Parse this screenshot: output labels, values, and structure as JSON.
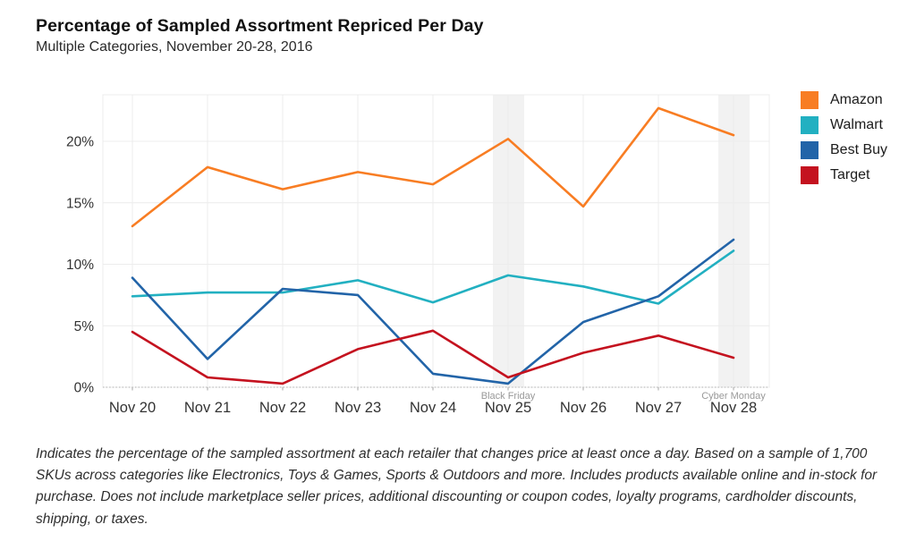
{
  "header": {
    "title": "Percentage of Sampled Assortment Repriced Per Day",
    "subtitle": "Multiple Categories, November 20-28, 2016"
  },
  "chart_data": {
    "type": "line",
    "title": "Percentage of Sampled Assortment Repriced Per Day",
    "subtitle": "Multiple Categories, November 20-28, 2016",
    "categories": [
      "Nov 20",
      "Nov 21",
      "Nov 22",
      "Nov 23",
      "Nov 24",
      "Nov 25",
      "Nov 26",
      "Nov 27",
      "Nov 28"
    ],
    "series": [
      {
        "name": "Amazon",
        "color": "#F87D23",
        "values": [
          13.1,
          17.9,
          16.1,
          17.5,
          16.5,
          20.2,
          14.7,
          22.7,
          20.5
        ]
      },
      {
        "name": "Walmart",
        "color": "#22B0C1",
        "values": [
          7.4,
          7.7,
          7.7,
          8.7,
          6.9,
          9.1,
          8.2,
          6.8,
          11.1
        ]
      },
      {
        "name": "Best Buy",
        "color": "#2264A8",
        "values": [
          8.9,
          2.3,
          8.0,
          7.5,
          1.1,
          0.3,
          5.3,
          7.4,
          12.0
        ]
      },
      {
        "name": "Target",
        "color": "#C4121F",
        "values": [
          4.5,
          0.8,
          0.3,
          3.1,
          4.6,
          0.8,
          2.8,
          4.2,
          2.4
        ]
      }
    ],
    "xlabel": "",
    "ylabel": "",
    "yticks": [
      0,
      5,
      10,
      15,
      20
    ],
    "ytick_labels": [
      "0%",
      "5%",
      "10%",
      "15%",
      "20%"
    ],
    "ylim": [
      0,
      23.8
    ],
    "grid": true,
    "legend_position": "right",
    "annotations": [
      {
        "type": "band",
        "label": "Black Friday",
        "category_index": 5
      },
      {
        "type": "band",
        "label": "Cyber Monday",
        "category_index": 8
      }
    ],
    "band_color": "#f2f2f2",
    "grid_color": "#ececec",
    "axis_color": "#c9c9c9",
    "tick_label_color": "#333333",
    "annotation_label_color": "#999999"
  },
  "footnote": "Indicates the percentage of the sampled assortment at each retailer that changes price at least once a day. Based on a sample of 1,700 SKUs across categories like Electronics, Toys & Games, Sports & Outdoors and more. Includes products available online and in-stock for purchase. Does not include marketplace seller prices, additional discounting or coupon codes, loyalty programs, cardholder discounts, shipping, or taxes."
}
